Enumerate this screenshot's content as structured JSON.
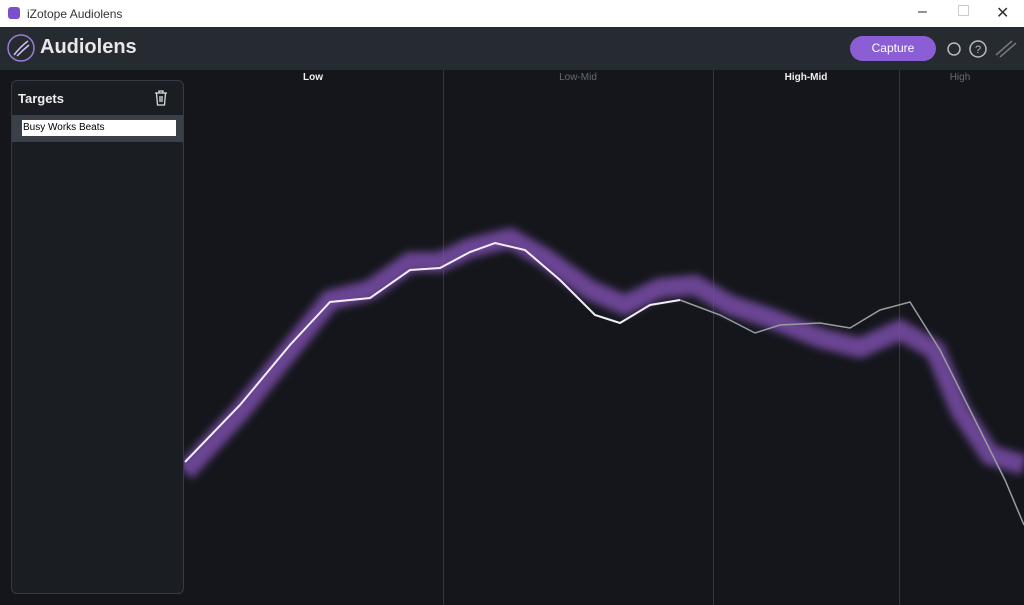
{
  "window": {
    "title": "iZotope Audiolens"
  },
  "header": {
    "app_name": "Audiolens",
    "capture_button": "Capture"
  },
  "targets_panel": {
    "title": "Targets",
    "items": [
      "Busy Works Beats"
    ]
  },
  "bands": [
    "Low",
    "Low-Mid",
    "High-Mid",
    "High"
  ]
}
